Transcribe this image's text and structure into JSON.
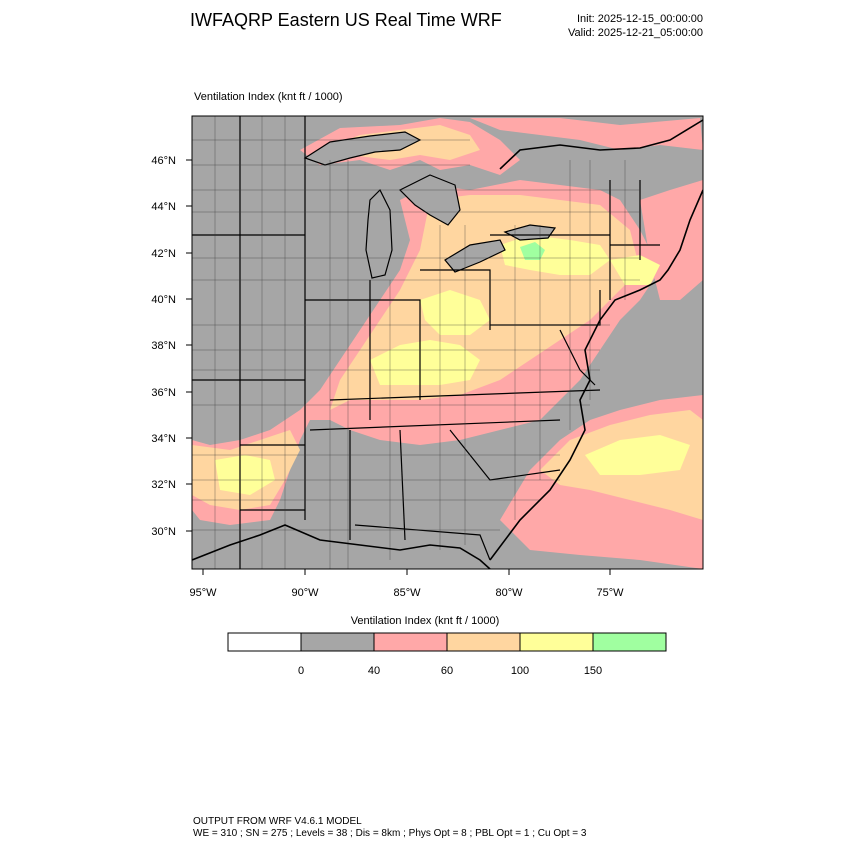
{
  "header": {
    "title": "IWFAQRP Eastern US Real Time WRF",
    "init": "Init: 2025-12-15_00:00:00",
    "valid": "Valid: 2025-12-21_05:00:00"
  },
  "map": {
    "field_label": "Ventilation Index   (knt ft / 1000)",
    "lat_labels": [
      "46°N",
      "44°N",
      "42°N",
      "40°N",
      "38°N",
      "36°N",
      "34°N",
      "32°N",
      "30°N"
    ],
    "lon_labels": [
      "95°W",
      "90°W",
      "85°W",
      "80°W",
      "75°W"
    ],
    "colors": {
      "land_low": "#a6a6a6",
      "band_40_60": "#ffa8a8",
      "band_60_100": "#ffd6a0",
      "band_100_150": "#ffff99",
      "band_150_plus": "#a0ffa0",
      "water": "#a6a6a6"
    }
  },
  "colorbar": {
    "title": "Ventilation Index  (knt ft / 1000)",
    "boxes": [
      {
        "color": "#ffffff"
      },
      {
        "color": "#a6a6a6"
      },
      {
        "color": "#ffa8a8"
      },
      {
        "color": "#ffd6a0"
      },
      {
        "color": "#ffff99"
      },
      {
        "color": "#a0ffa0"
      }
    ],
    "tick_labels": [
      "0",
      "40",
      "60",
      "100",
      "150"
    ]
  },
  "footer": {
    "line1": "OUTPUT FROM WRF V4.6.1 MODEL",
    "line2": "WE = 310 ; SN = 275 ; Levels = 38 ; Dis = 8km ; Phys Opt = 8 ; PBL Opt = 1 ; Cu Opt = 3"
  }
}
